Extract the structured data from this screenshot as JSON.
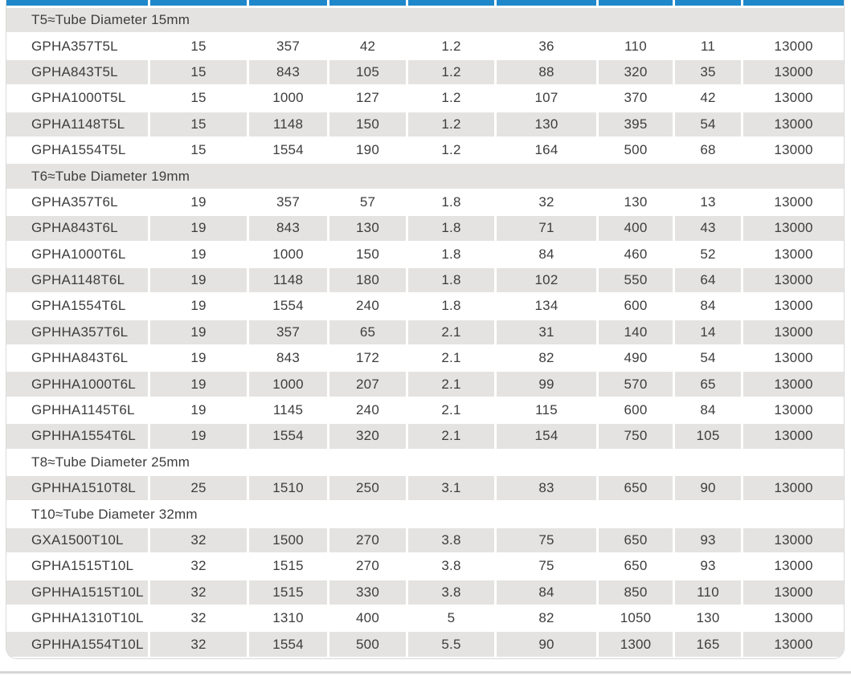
{
  "colors": {
    "header_accent": "#1f88ca",
    "alt_row_background": "#e4e3e1",
    "text": "#3d3d3d",
    "bottom_divider": "#d6d5d3"
  },
  "table": {
    "sections": [
      {
        "title": "T5≈Tube Diameter 15mm",
        "rows": [
          [
            "GPHA357T5L",
            "15",
            "357",
            "42",
            "1.2",
            "36",
            "110",
            "11",
            "13000"
          ],
          [
            "GPHA843T5L",
            "15",
            "843",
            "105",
            "1.2",
            "88",
            "320",
            "35",
            "13000"
          ],
          [
            "GPHA1000T5L",
            "15",
            "1000",
            "127",
            "1.2",
            "107",
            "370",
            "42",
            "13000"
          ],
          [
            "GPHA1148T5L",
            "15",
            "1148",
            "150",
            "1.2",
            "130",
            "395",
            "54",
            "13000"
          ],
          [
            "GPHA1554T5L",
            "15",
            "1554",
            "190",
            "1.2",
            "164",
            "500",
            "68",
            "13000"
          ]
        ]
      },
      {
        "title": "T6≈Tube Diameter 19mm",
        "rows": [
          [
            "GPHA357T6L",
            "19",
            "357",
            "57",
            "1.8",
            "32",
            "130",
            "13",
            "13000"
          ],
          [
            "GPHA843T6L",
            "19",
            "843",
            "130",
            "1.8",
            "71",
            "400",
            "43",
            "13000"
          ],
          [
            "GPHA1000T6L",
            "19",
            "1000",
            "150",
            "1.8",
            "84",
            "460",
            "52",
            "13000"
          ],
          [
            "GPHA1148T6L",
            "19",
            "1148",
            "180",
            "1.8",
            "102",
            "550",
            "64",
            "13000"
          ],
          [
            "GPHA1554T6L",
            "19",
            "1554",
            "240",
            "1.8",
            "134",
            "600",
            "84",
            "13000"
          ],
          [
            "GPHHA357T6L",
            "19",
            "357",
            "65",
            "2.1",
            "31",
            "140",
            "14",
            "13000"
          ],
          [
            "GPHHA843T6L",
            "19",
            "843",
            "172",
            "2.1",
            "82",
            "490",
            "54",
            "13000"
          ],
          [
            "GPHHA1000T6L",
            "19",
            "1000",
            "207",
            "2.1",
            "99",
            "570",
            "65",
            "13000"
          ],
          [
            "GPHHA1145T6L",
            "19",
            "1145",
            "240",
            "2.1",
            "115",
            "600",
            "84",
            "13000"
          ],
          [
            "GPHHA1554T6L",
            "19",
            "1554",
            "320",
            "2.1",
            "154",
            "750",
            "105",
            "13000"
          ]
        ]
      },
      {
        "title": "T8≈Tube Diameter 25mm",
        "rows": [
          [
            "GPHHA1510T8L",
            "25",
            "1510",
            "250",
            "3.1",
            "83",
            "650",
            "90",
            "13000"
          ]
        ]
      },
      {
        "title": "T10≈Tube Diameter 32mm",
        "rows": [
          [
            "GXA1500T10L",
            "32",
            "1500",
            "270",
            "3.8",
            "75",
            "650",
            "93",
            "13000"
          ],
          [
            "GPHA1515T10L",
            "32",
            "1515",
            "270",
            "3.8",
            "75",
            "650",
            "93",
            "13000"
          ],
          [
            "GPHHA1515T10L",
            "32",
            "1515",
            "330",
            "3.8",
            "84",
            "850",
            "110",
            "13000"
          ],
          [
            "GPHHA1310T10L",
            "32",
            "1310",
            "400",
            "5",
            "82",
            "1050",
            "130",
            "13000"
          ],
          [
            "GPHHA1554T10L",
            "32",
            "1554",
            "500",
            "5.5",
            "90",
            "1300",
            "165",
            "13000"
          ]
        ]
      }
    ]
  }
}
